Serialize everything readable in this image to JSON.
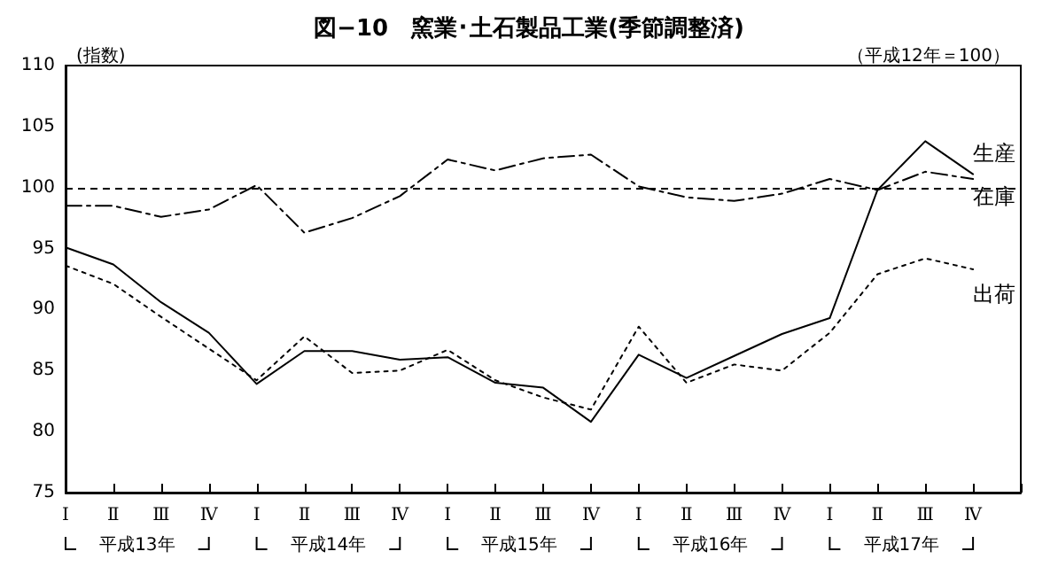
{
  "chart_data": {
    "type": "line",
    "title": "図−10　窯業･土石製品工業(季節調整済)",
    "subtitle": "（平成12年＝100）",
    "ylabel": "(指数)",
    "categories": [
      "Ⅰ",
      "Ⅱ",
      "Ⅲ",
      "Ⅳ",
      "Ⅰ",
      "Ⅱ",
      "Ⅲ",
      "Ⅳ",
      "Ⅰ",
      "Ⅱ",
      "Ⅲ",
      "Ⅳ",
      "Ⅰ",
      "Ⅱ",
      "Ⅲ",
      "Ⅳ",
      "Ⅰ",
      "Ⅱ",
      "Ⅲ",
      "Ⅳ",
      null
    ],
    "series": [
      {
        "name": "生産",
        "color": "#000000",
        "line_style": "solid",
        "values": [
          95.1,
          93.7,
          90.6,
          88.1,
          83.9,
          86.6,
          86.6,
          85.9,
          86.1,
          84.0,
          83.6,
          80.8,
          86.3,
          84.4,
          86.2,
          88.0,
          89.3,
          99.8,
          103.8,
          101.1,
          null
        ]
      },
      {
        "name": "出荷",
        "color": "#000000",
        "line_style": "dotted",
        "values": [
          93.6,
          92.1,
          89.4,
          86.8,
          84.2,
          87.8,
          84.8,
          85.0,
          86.7,
          84.2,
          82.8,
          81.8,
          88.6,
          84.0,
          85.5,
          85.0,
          88.1,
          92.9,
          94.2,
          93.3,
          null
        ]
      },
      {
        "name": "在庫",
        "color": "#000000",
        "line_style": "dashdot",
        "values": [
          98.5,
          98.5,
          97.6,
          98.2,
          100.2,
          96.3,
          97.5,
          99.3,
          102.3,
          101.4,
          102.4,
          102.7,
          100.1,
          99.2,
          98.9,
          99.5,
          100.7,
          99.8,
          101.3,
          100.7,
          null
        ]
      }
    ],
    "ylim": [
      75,
      110
    ],
    "yticks": [
      75,
      80,
      85,
      90,
      95,
      100,
      105,
      110
    ],
    "ref_lines": [
      {
        "axis": "y",
        "value": 100,
        "line_style": "dashed",
        "color": "#000000"
      }
    ],
    "annotations": [
      "平成13年",
      "平成14年",
      "平成15年",
      "平成16年",
      "平成17年"
    ],
    "grid": false,
    "legend": false,
    "marker": "none"
  }
}
